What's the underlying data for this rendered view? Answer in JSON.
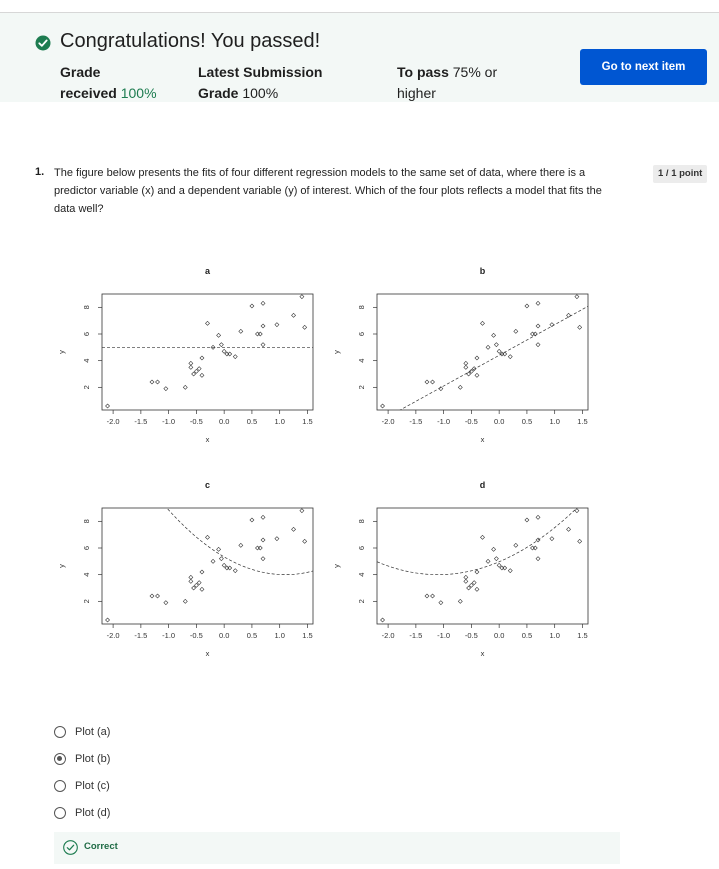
{
  "banner": {
    "title": "Congratulations! You passed!",
    "grade_label_1": "Grade",
    "grade_label_2": "received",
    "grade_value": "100%",
    "latest_label_1": "Latest Submission",
    "latest_label_2": "Grade",
    "latest_value": "100%",
    "pass_label": "To pass",
    "pass_value_1": "75% or",
    "pass_value_2": "higher",
    "next_button": "Go to next item"
  },
  "question": {
    "number": "1.",
    "text": "The figure below presents the fits of four different regression models to the same set of data, where there is a predictor variable (x) and a dependent variable (y) of interest. Which of the four plots reflects a model that fits the data well?",
    "points": "1 / 1 point"
  },
  "options": [
    {
      "label": "Plot (a)",
      "selected": false
    },
    {
      "label": "Plot (b)",
      "selected": true
    },
    {
      "label": "Plot (c)",
      "selected": false
    },
    {
      "label": "Plot (d)",
      "selected": false
    }
  ],
  "feedback": {
    "text": "Correct"
  },
  "chart_data": [
    {
      "title": "a",
      "type": "scatter",
      "xlabel": "x",
      "ylabel": "y",
      "xlim": [
        -2.2,
        1.6
      ],
      "ylim": [
        0.3,
        9.0
      ],
      "xticks": [
        "-2.0",
        "-1.5",
        "-1.0",
        "-0.5",
        "0.0",
        "0.5",
        "1.0",
        "1.5"
      ],
      "yticks": [
        "2",
        "4",
        "6",
        "8"
      ],
      "fit": "constant",
      "points": [
        [
          -2.1,
          0.6
        ],
        [
          -1.3,
          2.4
        ],
        [
          -1.2,
          2.4
        ],
        [
          -1.05,
          1.9
        ],
        [
          -0.7,
          2.0
        ],
        [
          -0.6,
          3.5
        ],
        [
          -0.6,
          3.8
        ],
        [
          -0.55,
          3.0
        ],
        [
          -0.5,
          3.2
        ],
        [
          -0.45,
          3.4
        ],
        [
          -0.4,
          2.9
        ],
        [
          -0.4,
          4.2
        ],
        [
          -0.3,
          6.8
        ],
        [
          -0.2,
          5.0
        ],
        [
          -0.1,
          5.9
        ],
        [
          -0.05,
          5.2
        ],
        [
          0.0,
          4.7
        ],
        [
          0.05,
          4.5
        ],
        [
          0.1,
          4.5
        ],
        [
          0.2,
          4.3
        ],
        [
          0.3,
          6.2
        ],
        [
          0.5,
          8.1
        ],
        [
          0.6,
          6.0
        ],
        [
          0.65,
          6.0
        ],
        [
          0.7,
          5.2
        ],
        [
          0.7,
          6.6
        ],
        [
          0.7,
          8.3
        ],
        [
          0.95,
          6.7
        ],
        [
          1.25,
          7.4
        ],
        [
          1.4,
          8.8
        ],
        [
          1.45,
          6.5
        ]
      ]
    },
    {
      "title": "b",
      "type": "scatter",
      "xlabel": "x",
      "ylabel": "y",
      "xlim": [
        -2.2,
        1.6
      ],
      "ylim": [
        0.3,
        9.0
      ],
      "xticks": [
        "-2.0",
        "-1.5",
        "-1.0",
        "-0.5",
        "0.0",
        "0.5",
        "1.0",
        "1.5"
      ],
      "yticks": [
        "2",
        "4",
        "6",
        "8"
      ],
      "fit": "linear",
      "points": [
        [
          -2.1,
          0.6
        ],
        [
          -1.3,
          2.4
        ],
        [
          -1.2,
          2.4
        ],
        [
          -1.05,
          1.9
        ],
        [
          -0.7,
          2.0
        ],
        [
          -0.6,
          3.5
        ],
        [
          -0.6,
          3.8
        ],
        [
          -0.55,
          3.0
        ],
        [
          -0.5,
          3.2
        ],
        [
          -0.45,
          3.4
        ],
        [
          -0.4,
          2.9
        ],
        [
          -0.4,
          4.2
        ],
        [
          -0.3,
          6.8
        ],
        [
          -0.2,
          5.0
        ],
        [
          -0.1,
          5.9
        ],
        [
          -0.05,
          5.2
        ],
        [
          0.0,
          4.7
        ],
        [
          0.05,
          4.5
        ],
        [
          0.1,
          4.5
        ],
        [
          0.2,
          4.3
        ],
        [
          0.3,
          6.2
        ],
        [
          0.5,
          8.1
        ],
        [
          0.6,
          6.0
        ],
        [
          0.65,
          6.0
        ],
        [
          0.7,
          5.2
        ],
        [
          0.7,
          6.6
        ],
        [
          0.7,
          8.3
        ],
        [
          0.95,
          6.7
        ],
        [
          1.25,
          7.4
        ],
        [
          1.4,
          8.8
        ],
        [
          1.45,
          6.5
        ]
      ]
    },
    {
      "title": "c",
      "type": "scatter",
      "xlabel": "x",
      "ylabel": "y",
      "xlim": [
        -2.2,
        1.6
      ],
      "ylim": [
        0.3,
        9.0
      ],
      "xticks": [
        "-2.0",
        "-1.5",
        "-1.0",
        "-0.5",
        "0.0",
        "0.5",
        "1.0",
        "1.5"
      ],
      "yticks": [
        "2",
        "4",
        "6",
        "8"
      ],
      "fit": "quadratic-opening-up-right",
      "points": [
        [
          -2.1,
          0.6
        ],
        [
          -1.3,
          2.4
        ],
        [
          -1.2,
          2.4
        ],
        [
          -1.05,
          1.9
        ],
        [
          -0.7,
          2.0
        ],
        [
          -0.6,
          3.5
        ],
        [
          -0.6,
          3.8
        ],
        [
          -0.55,
          3.0
        ],
        [
          -0.5,
          3.2
        ],
        [
          -0.45,
          3.4
        ],
        [
          -0.4,
          2.9
        ],
        [
          -0.4,
          4.2
        ],
        [
          -0.3,
          6.8
        ],
        [
          -0.2,
          5.0
        ],
        [
          -0.1,
          5.9
        ],
        [
          -0.05,
          5.2
        ],
        [
          0.0,
          4.7
        ],
        [
          0.05,
          4.5
        ],
        [
          0.1,
          4.5
        ],
        [
          0.2,
          4.3
        ],
        [
          0.3,
          6.2
        ],
        [
          0.5,
          8.1
        ],
        [
          0.6,
          6.0
        ],
        [
          0.65,
          6.0
        ],
        [
          0.7,
          5.2
        ],
        [
          0.7,
          6.6
        ],
        [
          0.7,
          8.3
        ],
        [
          0.95,
          6.7
        ],
        [
          1.25,
          7.4
        ],
        [
          1.4,
          8.8
        ],
        [
          1.45,
          6.5
        ]
      ]
    },
    {
      "title": "d",
      "type": "scatter",
      "xlabel": "x",
      "ylabel": "y",
      "xlim": [
        -2.2,
        1.6
      ],
      "ylim": [
        0.3,
        9.0
      ],
      "xticks": [
        "-2.0",
        "-1.5",
        "-1.0",
        "-0.5",
        "0.0",
        "0.5",
        "1.0",
        "1.5"
      ],
      "yticks": [
        "2",
        "4",
        "6",
        "8"
      ],
      "fit": "quadratic-opening-up-left",
      "points": [
        [
          -2.1,
          0.6
        ],
        [
          -1.3,
          2.4
        ],
        [
          -1.2,
          2.4
        ],
        [
          -1.05,
          1.9
        ],
        [
          -0.7,
          2.0
        ],
        [
          -0.6,
          3.5
        ],
        [
          -0.6,
          3.8
        ],
        [
          -0.55,
          3.0
        ],
        [
          -0.5,
          3.2
        ],
        [
          -0.45,
          3.4
        ],
        [
          -0.4,
          2.9
        ],
        [
          -0.4,
          4.2
        ],
        [
          -0.3,
          6.8
        ],
        [
          -0.2,
          5.0
        ],
        [
          -0.1,
          5.9
        ],
        [
          -0.05,
          5.2
        ],
        [
          0.0,
          4.7
        ],
        [
          0.05,
          4.5
        ],
        [
          0.1,
          4.5
        ],
        [
          0.2,
          4.3
        ],
        [
          0.3,
          6.2
        ],
        [
          0.5,
          8.1
        ],
        [
          0.6,
          6.0
        ],
        [
          0.65,
          6.0
        ],
        [
          0.7,
          5.2
        ],
        [
          0.7,
          6.6
        ],
        [
          0.7,
          8.3
        ],
        [
          0.95,
          6.7
        ],
        [
          1.25,
          7.4
        ],
        [
          1.4,
          8.8
        ],
        [
          1.45,
          6.5
        ]
      ]
    }
  ],
  "colors": {
    "accent": "#0056d2",
    "success": "#1d7c50",
    "banner_bg": "#f3f8f6"
  }
}
